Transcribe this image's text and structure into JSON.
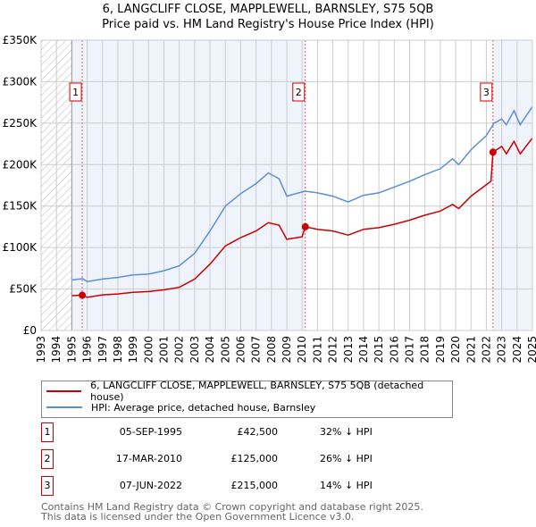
{
  "chart_data": {
    "type": "line",
    "title": "6, LANGCLIFF CLOSE, MAPPLEWELL, BARNSLEY, S75 5QB",
    "subtitle": "Price paid vs. HM Land Registry's House Price Index (HPI)",
    "xlim": [
      1993,
      2025
    ],
    "ylim": [
      0,
      350000
    ],
    "xticks": [
      "1993",
      "1994",
      "1995",
      "1996",
      "1997",
      "1998",
      "1999",
      "2000",
      "2001",
      "2002",
      "2003",
      "2004",
      "2005",
      "2006",
      "2007",
      "2008",
      "2009",
      "2010",
      "2011",
      "2012",
      "2013",
      "2014",
      "2015",
      "2016",
      "2017",
      "2018",
      "2019",
      "2020",
      "2021",
      "2022",
      "2023",
      "2024",
      "2025"
    ],
    "yticks": [
      {
        "v": 0,
        "label": "£0"
      },
      {
        "v": 50000,
        "label": "£50K"
      },
      {
        "v": 100000,
        "label": "£100K"
      },
      {
        "v": 150000,
        "label": "£150K"
      },
      {
        "v": 200000,
        "label": "£200K"
      },
      {
        "v": 250000,
        "label": "£250K"
      },
      {
        "v": 300000,
        "label": "£300K"
      },
      {
        "v": 350000,
        "label": "£350K"
      }
    ],
    "grid": true,
    "series": [
      {
        "name": "6, LANGCLIFF CLOSE, MAPPLEWELL, BARNSLEY, S75 5QB (detached house)",
        "color": "#cc0000",
        "x": [
          1995,
          1995.7,
          1996,
          1997,
          1998,
          1999,
          2000,
          2001,
          2002,
          2003,
          2004,
          2005,
          2006,
          2007,
          2007.8,
          2008.5,
          2009,
          2010,
          2010.2,
          2011,
          2012,
          2013,
          2014,
          2015,
          2016,
          2017,
          2018,
          2019,
          2019.8,
          2020.2,
          2021,
          2022.3,
          2022.43,
          2023,
          2023.3,
          2023.8,
          2024.2,
          2025
        ],
        "y": [
          42000,
          42500,
          40000,
          43000,
          44000,
          46000,
          47000,
          49000,
          52000,
          62000,
          80000,
          102000,
          112000,
          120000,
          130000,
          127000,
          110000,
          113000,
          125000,
          122000,
          120000,
          115000,
          122000,
          124000,
          128000,
          133000,
          139000,
          144000,
          152000,
          147000,
          162000,
          180000,
          215000,
          222000,
          213000,
          228000,
          213000,
          232000
        ]
      },
      {
        "name": "HPI: Average price, detached house, Barnsley",
        "color": "#5b8fd4",
        "x": [
          1995,
          1995.7,
          1996,
          1997,
          1998,
          1999,
          2000,
          2001,
          2002,
          2003,
          2004,
          2005,
          2006,
          2007,
          2007.8,
          2008.5,
          2009,
          2010,
          2010.2,
          2011,
          2012,
          2013,
          2014,
          2015,
          2016,
          2017,
          2018,
          2019,
          2019.8,
          2020.2,
          2021,
          2022,
          2022.5,
          2023,
          2023.3,
          2023.8,
          2024.2,
          2025
        ],
        "y": [
          60800,
          62500,
          59000,
          62000,
          64000,
          67000,
          68000,
          72000,
          78000,
          93000,
          120000,
          150000,
          165000,
          177000,
          190000,
          183000,
          162000,
          167000,
          168000,
          166000,
          162000,
          155000,
          163000,
          166000,
          173000,
          180000,
          188000,
          195000,
          207000,
          200000,
          218000,
          235000,
          250000,
          255000,
          248000,
          265000,
          248000,
          270000
        ]
      }
    ],
    "sales": [
      {
        "num": "1",
        "x": 1995.68,
        "y": 42500,
        "date": "05-SEP-1995",
        "price": "£42,500",
        "hpi": "32% ↓ HPI"
      },
      {
        "num": "2",
        "x": 2010.21,
        "y": 125000,
        "date": "17-MAR-2010",
        "price": "£125,000",
        "hpi": "26% ↓ HPI"
      },
      {
        "num": "3",
        "x": 2022.43,
        "y": 215000,
        "date": "07-JUN-2022",
        "price": "£215,000",
        "hpi": "14% ↓ HPI"
      }
    ],
    "legend_position": "below"
  },
  "footer": {
    "line1": "Contains HM Land Registry data © Crown copyright and database right 2025.",
    "line2": "This data is licensed under the Open Government Licence v3.0."
  }
}
